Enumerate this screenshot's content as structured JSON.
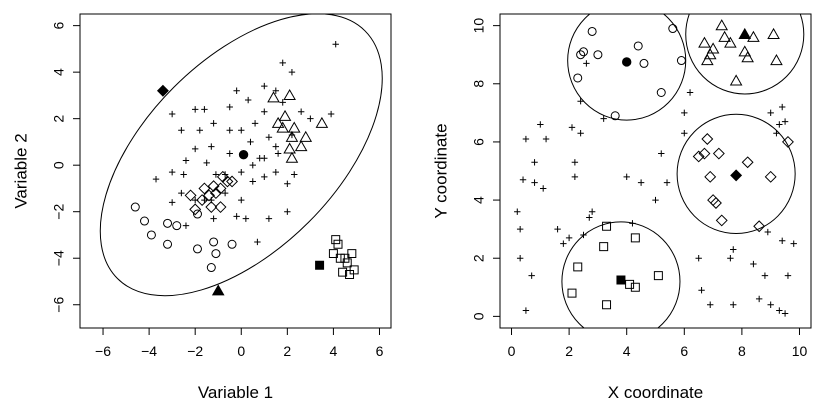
{
  "chart_data": [
    {
      "type": "scatter",
      "xlabel": "Variable 1",
      "ylabel": "Variable 2",
      "xlim": [
        -7,
        6.5
      ],
      "ylim": [
        -7,
        6.5
      ],
      "xticks": [
        -6,
        -4,
        -2,
        0,
        2,
        4,
        6
      ],
      "yticks": [
        -6,
        -4,
        -2,
        0,
        2,
        4,
        6
      ],
      "grid": false,
      "legend": "none",
      "ellipse": {
        "center": [
          0,
          0.45
        ],
        "semi_major": 7.6,
        "semi_minor": 4.1,
        "angle_deg": 45
      },
      "series": [
        {
          "marker": "plus",
          "points": [
            [
              4.1,
              5.2
            ],
            [
              1.0,
              3.4
            ],
            [
              1.5,
              3.2
            ],
            [
              1.8,
              4.4
            ],
            [
              2.2,
              4.0
            ],
            [
              -0.2,
              3.2
            ],
            [
              -0.5,
              2.5
            ],
            [
              0.3,
              2.8
            ],
            [
              1.0,
              2.3
            ],
            [
              1.8,
              2.7
            ],
            [
              2.6,
              2.3
            ],
            [
              3.0,
              2.0
            ],
            [
              3.9,
              2.2
            ],
            [
              -2.0,
              2.4
            ],
            [
              -1.6,
              2.4
            ],
            [
              -3.0,
              2.2
            ],
            [
              -2.6,
              1.5
            ],
            [
              -1.8,
              1.5
            ],
            [
              -1.2,
              1.8
            ],
            [
              -0.5,
              1.5
            ],
            [
              0.0,
              1.5
            ],
            [
              0.6,
              1.8
            ],
            [
              1.2,
              1.2
            ],
            [
              1.5,
              0.8
            ],
            [
              1.0,
              0.3
            ],
            [
              0.5,
              0.0
            ],
            [
              0.0,
              -0.3
            ],
            [
              -0.5,
              0.5
            ],
            [
              -1.3,
              0.8
            ],
            [
              -2.0,
              0.7
            ],
            [
              -1.5,
              0.1
            ],
            [
              -2.4,
              0.2
            ],
            [
              -3.0,
              -0.3
            ],
            [
              -2.5,
              -0.4
            ],
            [
              -3.7,
              -0.6
            ],
            [
              -2.6,
              -1.2
            ],
            [
              -2.0,
              -1.5
            ],
            [
              -1.3,
              -1.5
            ],
            [
              -0.7,
              -1.2
            ],
            [
              0.0,
              -1.5
            ],
            [
              0.5,
              -0.7
            ],
            [
              1.0,
              -0.5
            ],
            [
              1.5,
              -0.3
            ],
            [
              2.3,
              -0.4
            ],
            [
              2.0,
              -0.8
            ],
            [
              0.8,
              0.3
            ],
            [
              -0.7,
              -0.4
            ],
            [
              -0.2,
              -2.2
            ],
            [
              0.2,
              -2.3
            ],
            [
              1.2,
              -2.3
            ],
            [
              2.0,
              -2.0
            ],
            [
              0.7,
              -3.3
            ],
            [
              -1.2,
              -2.3
            ],
            [
              -2.4,
              -2.6
            ],
            [
              -3.0,
              -1.6
            ],
            [
              -1.6,
              -1.5
            ],
            [
              -1.1,
              -0.4
            ],
            [
              0.4,
              1.0
            ],
            [
              2.2,
              1.3
            ],
            [
              1.6,
              0.5
            ]
          ]
        },
        {
          "marker": "open-circle",
          "points": [
            [
              -4.6,
              -1.8
            ],
            [
              -4.2,
              -2.4
            ],
            [
              -3.9,
              -3.0
            ],
            [
              -3.2,
              -2.5
            ],
            [
              -3.2,
              -3.4
            ],
            [
              -2.8,
              -2.6
            ],
            [
              -1.9,
              -3.6
            ],
            [
              -1.2,
              -3.3
            ],
            [
              -1.3,
              -4.4
            ],
            [
              -1.1,
              -3.8
            ],
            [
              -0.4,
              -3.4
            ],
            [
              -1.9,
              -2.1
            ]
          ]
        },
        {
          "marker": "open-diamond",
          "points": [
            [
              -2.2,
              -1.3
            ],
            [
              -2.0,
              -1.9
            ],
            [
              -1.7,
              -1.5
            ],
            [
              -1.6,
              -1.0
            ],
            [
              -1.4,
              -1.3
            ],
            [
              -1.3,
              -1.8
            ],
            [
              -1.1,
              -1.2
            ],
            [
              -0.9,
              -1.8
            ],
            [
              -0.8,
              -0.5
            ],
            [
              -0.6,
              -0.7
            ],
            [
              -0.4,
              -0.7
            ],
            [
              -0.9,
              -1.0
            ],
            [
              -1.2,
              -0.9
            ]
          ]
        },
        {
          "marker": "open-triangle",
          "points": [
            [
              1.4,
              2.9
            ],
            [
              2.1,
              3.0
            ],
            [
              1.9,
              2.1
            ],
            [
              1.6,
              1.8
            ],
            [
              2.3,
              1.6
            ],
            [
              2.2,
              1.2
            ],
            [
              2.6,
              0.8
            ],
            [
              2.1,
              0.7
            ],
            [
              3.5,
              1.8
            ],
            [
              2.8,
              1.2
            ],
            [
              2.2,
              0.3
            ],
            [
              1.8,
              1.6
            ]
          ]
        },
        {
          "marker": "open-square",
          "points": [
            [
              4.1,
              -3.2
            ],
            [
              4.2,
              -3.4
            ],
            [
              4.3,
              -4.0
            ],
            [
              4.4,
              -4.6
            ],
            [
              4.6,
              -4.2
            ],
            [
              4.7,
              -4.7
            ],
            [
              4.8,
              -3.8
            ],
            [
              4.9,
              -4.5
            ],
            [
              4.5,
              -4.0
            ],
            [
              4.0,
              -3.8
            ]
          ]
        },
        {
          "marker": "filled-circle",
          "points": [
            [
              0.1,
              0.45
            ]
          ]
        },
        {
          "marker": "filled-diamond",
          "points": [
            [
              -3.4,
              3.2
            ]
          ]
        },
        {
          "marker": "filled-triangle",
          "points": [
            [
              -1.0,
              -5.4
            ]
          ]
        },
        {
          "marker": "filled-square",
          "points": [
            [
              3.4,
              -4.3
            ]
          ]
        }
      ]
    },
    {
      "type": "scatter",
      "xlabel": "X coordinate",
      "ylabel": "Y coordinate",
      "xlim": [
        -0.4,
        10.4
      ],
      "ylim": [
        -0.4,
        10.4
      ],
      "xticks": [
        0,
        2,
        4,
        6,
        8,
        10
      ],
      "yticks": [
        0,
        2,
        4,
        6,
        8,
        10
      ],
      "grid": false,
      "legend": "none",
      "circles": [
        {
          "center": [
            4.0,
            8.8
          ],
          "radius": 2.05
        },
        {
          "center": [
            8.1,
            9.7
          ],
          "radius": 2.05
        },
        {
          "center": [
            7.8,
            4.9
          ],
          "radius": 2.05
        },
        {
          "center": [
            3.8,
            1.2
          ],
          "radius": 2.05
        }
      ],
      "series": [
        {
          "marker": "plus",
          "points": [
            [
              0.2,
              3.6
            ],
            [
              0.3,
              2.0
            ],
            [
              0.3,
              3.0
            ],
            [
              0.4,
              4.7
            ],
            [
              0.5,
              6.1
            ],
            [
              0.5,
              0.2
            ],
            [
              0.7,
              1.4
            ],
            [
              0.8,
              4.6
            ],
            [
              0.8,
              5.3
            ],
            [
              1.0,
              6.6
            ],
            [
              1.1,
              4.4
            ],
            [
              1.2,
              6.1
            ],
            [
              1.6,
              3.0
            ],
            [
              1.8,
              2.5
            ],
            [
              2.0,
              2.7
            ],
            [
              2.1,
              6.5
            ],
            [
              2.2,
              5.3
            ],
            [
              2.2,
              4.8
            ],
            [
              2.4,
              7.4
            ],
            [
              2.4,
              6.3
            ],
            [
              2.5,
              2.8
            ],
            [
              2.6,
              8.7
            ],
            [
              2.7,
              3.4
            ],
            [
              2.8,
              3.6
            ],
            [
              3.2,
              6.8
            ],
            [
              4.0,
              4.8
            ],
            [
              4.5,
              4.6
            ],
            [
              4.2,
              3.2
            ],
            [
              5.0,
              4.0
            ],
            [
              5.2,
              5.6
            ],
            [
              5.4,
              4.6
            ],
            [
              6.0,
              6.3
            ],
            [
              6.0,
              7.0
            ],
            [
              6.2,
              7.7
            ],
            [
              6.5,
              2.0
            ],
            [
              6.6,
              0.9
            ],
            [
              6.9,
              0.4
            ],
            [
              7.7,
              0.4
            ],
            [
              7.7,
              2.3
            ],
            [
              8.4,
              1.8
            ],
            [
              8.6,
              0.6
            ],
            [
              8.8,
              1.4
            ],
            [
              8.9,
              2.9
            ],
            [
              9.0,
              7.0
            ],
            [
              9.2,
              6.3
            ],
            [
              9.4,
              2.6
            ],
            [
              9.5,
              0.1
            ],
            [
              9.6,
              1.4
            ],
            [
              9.8,
              2.5
            ],
            [
              9.4,
              7.2
            ],
            [
              9.5,
              6.7
            ],
            [
              9.3,
              0.2
            ],
            [
              9.3,
              6.6
            ],
            [
              9.0,
              0.4
            ],
            [
              7.6,
              2.0
            ]
          ]
        },
        {
          "marker": "open-circle",
          "points": [
            [
              2.3,
              8.2
            ],
            [
              2.4,
              9.0
            ],
            [
              2.5,
              9.1
            ],
            [
              2.8,
              9.8
            ],
            [
              3.0,
              9.0
            ],
            [
              3.6,
              6.9
            ],
            [
              4.4,
              9.3
            ],
            [
              4.6,
              8.7
            ],
            [
              5.2,
              7.7
            ],
            [
              5.6,
              9.9
            ],
            [
              5.9,
              8.8
            ]
          ]
        },
        {
          "marker": "open-triangle",
          "points": [
            [
              6.7,
              9.4
            ],
            [
              6.8,
              8.8
            ],
            [
              6.9,
              9.0
            ],
            [
              7.0,
              9.2
            ],
            [
              7.3,
              10.0
            ],
            [
              7.4,
              9.6
            ],
            [
              7.6,
              9.4
            ],
            [
              7.8,
              8.1
            ],
            [
              8.1,
              9.1
            ],
            [
              8.2,
              8.9
            ],
            [
              8.4,
              9.6
            ],
            [
              9.1,
              9.7
            ],
            [
              9.2,
              8.8
            ]
          ]
        },
        {
          "marker": "open-diamond",
          "points": [
            [
              6.5,
              5.5
            ],
            [
              6.7,
              5.6
            ],
            [
              6.8,
              6.1
            ],
            [
              6.9,
              4.8
            ],
            [
              7.0,
              4.0
            ],
            [
              7.1,
              3.9
            ],
            [
              7.2,
              5.6
            ],
            [
              7.3,
              3.3
            ],
            [
              8.2,
              5.3
            ],
            [
              8.6,
              3.1
            ],
            [
              9.0,
              4.8
            ],
            [
              9.6,
              6.0
            ]
          ]
        },
        {
          "marker": "open-square",
          "points": [
            [
              2.1,
              0.8
            ],
            [
              2.3,
              1.7
            ],
            [
              3.2,
              2.4
            ],
            [
              3.3,
              3.1
            ],
            [
              3.3,
              0.4
            ],
            [
              4.1,
              1.1
            ],
            [
              4.3,
              2.7
            ],
            [
              4.3,
              1.0
            ],
            [
              5.1,
              1.4
            ]
          ]
        },
        {
          "marker": "filled-circle",
          "points": [
            [
              4.0,
              8.75
            ]
          ]
        },
        {
          "marker": "filled-triangle",
          "points": [
            [
              8.1,
              9.7
            ]
          ]
        },
        {
          "marker": "filled-diamond",
          "points": [
            [
              7.8,
              4.85
            ]
          ]
        },
        {
          "marker": "filled-square",
          "points": [
            [
              3.8,
              1.25
            ]
          ]
        }
      ]
    }
  ]
}
